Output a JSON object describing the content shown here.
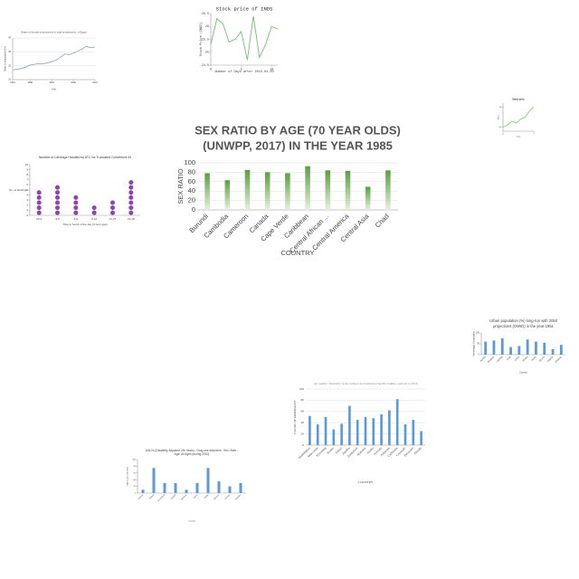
{
  "chart_data": [
    {
      "type": "bar",
      "title": [
        "SEX RATIO BY AGE (70 YEAR OLDS)",
        "(UNWPP, 2017) IN THE YEAR 1985"
      ],
      "x_label": "COUNTRY",
      "y_label": "SEX RATIO",
      "categories": [
        "Burundi",
        "Cambodia",
        "Cameroon",
        "Canada",
        "Cape Verde",
        "Caribbean",
        "Central African ...",
        "Central America",
        "Central Asia",
        "Chad"
      ],
      "values": [
        78,
        63,
        85,
        80,
        78,
        93,
        84,
        83,
        49,
        84
      ],
      "color": "#6aaa4f",
      "ylim": [
        0,
        100
      ],
      "yticks": [
        0,
        20,
        40,
        60,
        80,
        100
      ],
      "grid": true
    },
    {
      "type": "line",
      "title": [
        "Stock price of INDS"
      ],
      "x_label": "Number of Days after 2015-04-30",
      "y_label": "Stock Price (INDS)",
      "x": [
        0,
        1,
        2,
        3,
        4,
        5,
        6,
        7,
        8,
        9,
        10,
        11
      ],
      "values": [
        25.3,
        26.3,
        26.1,
        25.4,
        25.5,
        25.8,
        24.7,
        26.4,
        24.8,
        25.3,
        26.0,
        25.9
      ],
      "color": "#7cc47c",
      "xlim": [
        0,
        11
      ],
      "xticks": [
        0,
        5,
        10
      ],
      "ylim": [
        24.5,
        26.5
      ],
      "yticks": [
        24.5,
        25,
        25.5,
        26,
        26.5
      ],
      "grid": false
    },
    {
      "type": "line",
      "title": [
        "Share of female employment in total employment, in Egypt"
      ],
      "x_label": "Year",
      "y_label": "Share of employment (%)",
      "x": [
        1991,
        1992,
        1993,
        1994,
        1995,
        1996,
        1997,
        1998,
        1999,
        2000,
        2001,
        2002,
        2003,
        2004,
        2005,
        2006,
        2007,
        2008,
        2009,
        2010
      ],
      "values": [
        22,
        22.5,
        23,
        24,
        25.5,
        26,
        26.5,
        26.5,
        27,
        28,
        29,
        31,
        33.5,
        33,
        34,
        35.5,
        37,
        39,
        38,
        38.5
      ],
      "color": "#8a9bb0",
      "xlim": [
        1991,
        2010
      ],
      "xticks": [
        1991,
        1995,
        2000,
        2005,
        2010
      ],
      "ylim": [
        15,
        45
      ],
      "yticks": [
        15,
        25,
        35,
        45
      ],
      "grid": true
    },
    {
      "type": "line",
      "title": [
        "Stock price"
      ],
      "x_label": "Day",
      "y_label": "Price",
      "x": [
        0,
        1,
        2,
        3,
        4,
        5,
        6,
        7
      ],
      "values": [
        10,
        11,
        13,
        12,
        14,
        15,
        18,
        20
      ],
      "color": "#7cc47c",
      "xlim": [
        0,
        7
      ],
      "xticks": [
        0,
        7
      ],
      "ylim": [
        8,
        22
      ],
      "yticks": [
        10,
        20
      ],
      "grid": false
    },
    {
      "type": "dot",
      "title": [
        "Number of Landings Handled by ATC for Truncated Convertors 04"
      ],
      "x_label": "Time in hours of the day (3 hour gap)",
      "y_label": "No. of landings",
      "categories": [
        "00-3",
        "3-6",
        "6-9",
        "9-12",
        "12-15",
        "15-18"
      ],
      "values": [
        5,
        6,
        4,
        2,
        3,
        7
      ],
      "color": "#8e44ad",
      "ylim": [
        0,
        10
      ],
      "yticks": [
        0,
        1,
        2,
        3,
        4,
        5,
        6,
        7,
        8,
        9,
        10
      ],
      "grid": false
    },
    {
      "type": "bar",
      "title": [
        "Urban population (%) long-run with 2050",
        "projections (OWID) in the year 1951"
      ],
      "x_label": "Country",
      "y_label": "Percentage of population",
      "categories": [
        "Austria",
        "Belgium",
        "Canada",
        "Chile",
        "China",
        "Ghana",
        "Japan",
        "Mexico",
        "Nigeria",
        "Uruguay"
      ],
      "values": [
        60,
        65,
        75,
        35,
        40,
        70,
        60,
        55,
        25,
        45
      ],
      "color": "#5b9bd5",
      "ylim": [
        0,
        100
      ],
      "yticks": [
        0,
        50,
        100
      ],
      "grid": false
    },
    {
      "type": "bar",
      "title": [
        "Air quality: Mortality in the annual environmental health ranking, periods to 2016"
      ],
      "x_label": "COUNTRY",
      "y_label": "CAUSE OF MORTALITY",
      "categories": [
        "Washington",
        "Wisconsin",
        "Wyoming",
        "Yemen",
        "Yukon",
        "Zambia",
        "Zimbabwe",
        "Alabama",
        "Alaska",
        "Arizona",
        "Arkansas",
        "California",
        "Colorado",
        "Delaware",
        "Florida"
      ],
      "values": [
        52,
        37,
        50,
        28,
        38,
        70,
        45,
        50,
        48,
        55,
        62,
        82,
        37,
        45,
        25
      ],
      "color": "#5b9bd5",
      "ylim": [
        0,
        100
      ],
      "yticks": [
        0,
        20,
        40,
        60,
        80,
        100
      ],
      "grid": true
    },
    {
      "type": "bar",
      "title": [
        "DALYs (Disability-Adjusted Life Years) - Drug use disorders - Sex: Both -",
        "Age: All Ages (during 2010)"
      ],
      "x_label": "Country",
      "y_label": "DALYs (per 100,000)",
      "categories": [
        "Estonia",
        "Finland",
        "Greenland",
        "Iceland",
        "Jamaica",
        "Latvia",
        "Malta",
        "Monaco",
        "Norway",
        "Sweden"
      ],
      "values": [
        10,
        75,
        30,
        30,
        10,
        30,
        75,
        35,
        20,
        30
      ],
      "color": "#5b9bd5",
      "ylim": [
        0,
        100
      ],
      "yticks": [
        0,
        20,
        40,
        60,
        80,
        100
      ],
      "grid": false
    }
  ]
}
